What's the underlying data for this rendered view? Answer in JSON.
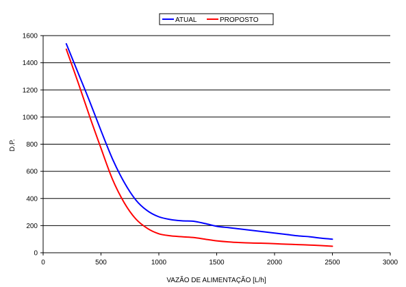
{
  "chart_data": {
    "type": "line",
    "xlabel": "VAZÃO DE ALIMENTAÇÃO [L/h]",
    "ylabel": "D.P.",
    "xlim": [
      0,
      3000
    ],
    "ylim": [
      0,
      1600
    ],
    "xticks": [
      0,
      500,
      1000,
      1500,
      2000,
      2500,
      3000
    ],
    "yticks": [
      0,
      200,
      400,
      600,
      800,
      1000,
      1200,
      1400,
      1600
    ],
    "xtick_labels": [
      "0",
      "500",
      "1000",
      "1500",
      "2000",
      "2500",
      "3000"
    ],
    "ytick_labels": [
      "0",
      "200",
      "400",
      "600",
      "800",
      "1000",
      "1200",
      "1400",
      "1600"
    ],
    "grid": "horizontal",
    "legend_position": "top",
    "series": [
      {
        "name": "ATUAL",
        "color": "#0000ff",
        "x": [
          200,
          300,
          400,
          500,
          600,
          700,
          800,
          900,
          1000,
          1100,
          1200,
          1300,
          1400,
          1500,
          1600,
          1700,
          1800,
          1900,
          2000,
          2100,
          2200,
          2300,
          2400,
          2500
        ],
        "y": [
          1540,
          1330,
          1120,
          900,
          690,
          520,
          390,
          310,
          265,
          245,
          235,
          232,
          215,
          195,
          185,
          175,
          165,
          155,
          145,
          135,
          125,
          118,
          108,
          100
        ]
      },
      {
        "name": "PROPOSTO",
        "color": "#ff0000",
        "x": [
          200,
          300,
          400,
          500,
          600,
          700,
          800,
          900,
          1000,
          1100,
          1200,
          1300,
          1400,
          1500,
          1600,
          1700,
          1800,
          1900,
          2000,
          2100,
          2200,
          2300,
          2400,
          2500
        ],
        "y": [
          1500,
          1260,
          1010,
          770,
          540,
          370,
          250,
          180,
          140,
          125,
          118,
          112,
          100,
          88,
          80,
          75,
          72,
          70,
          67,
          63,
          60,
          57,
          53,
          48
        ]
      }
    ]
  }
}
